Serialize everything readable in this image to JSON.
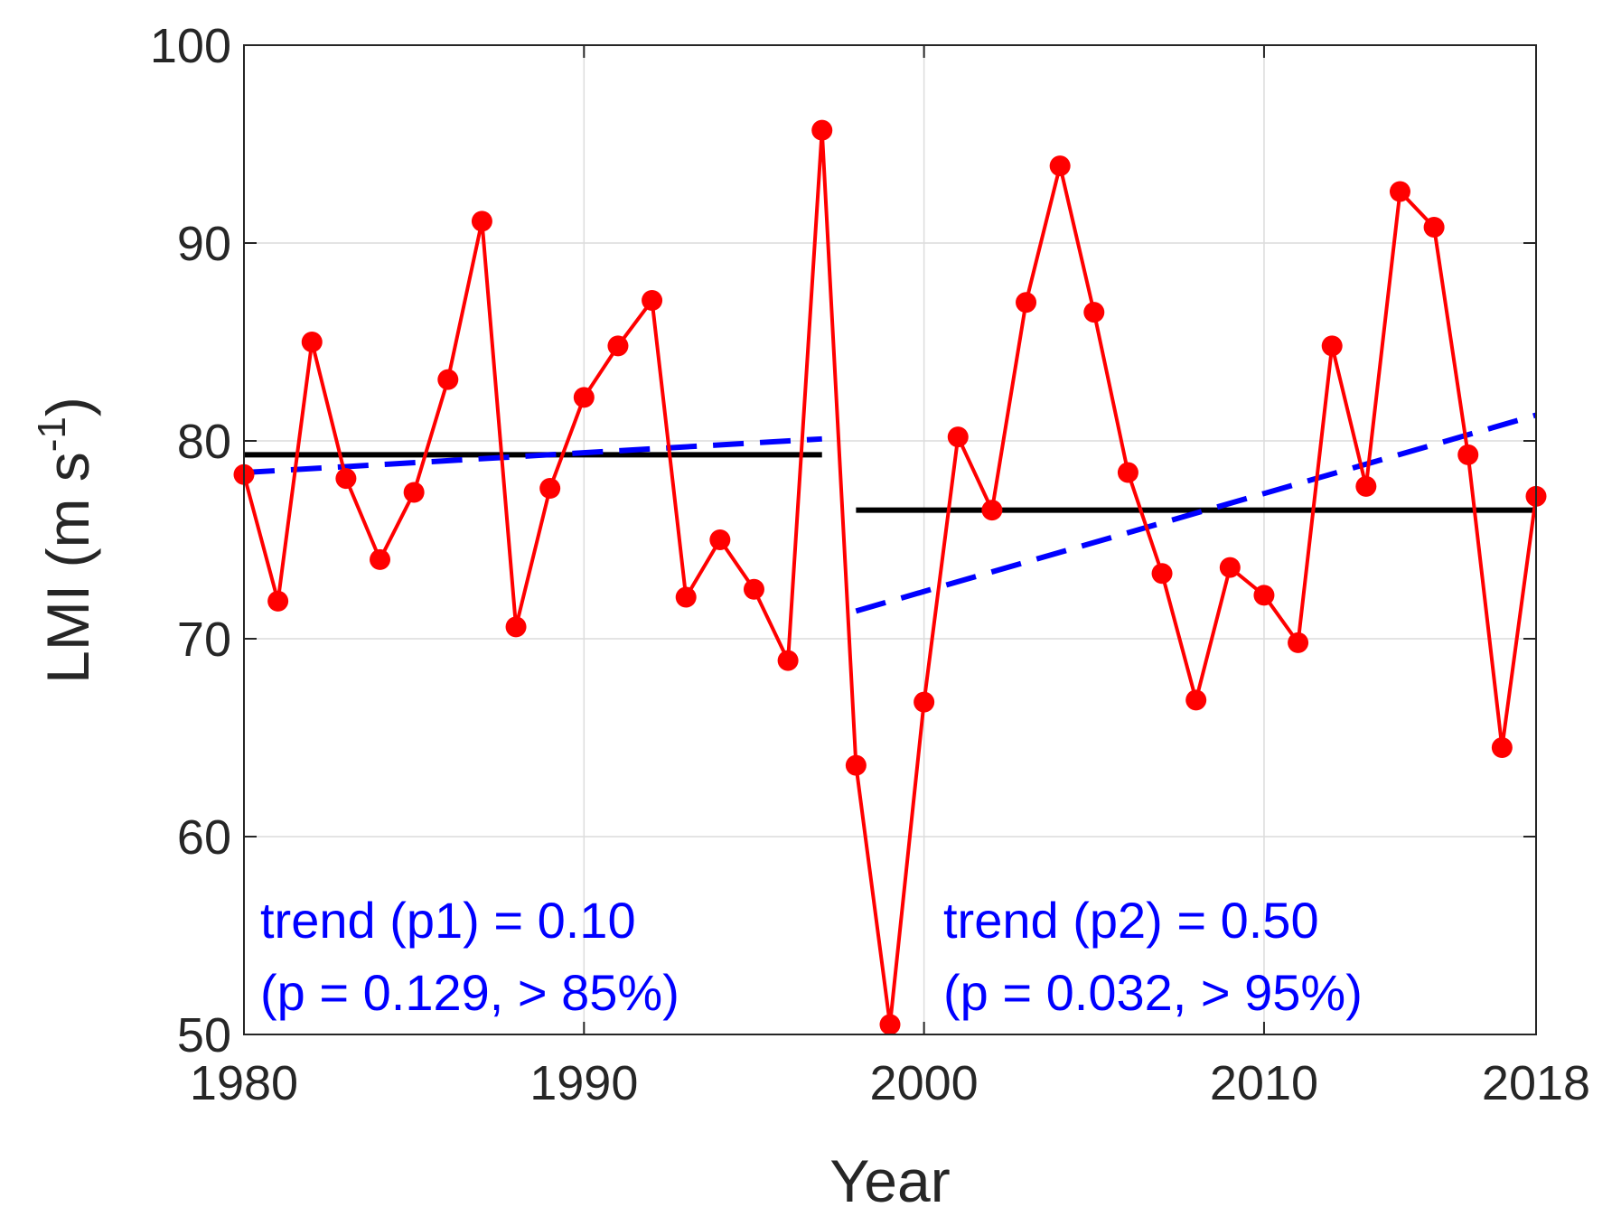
{
  "chart_data": {
    "type": "line",
    "title": "",
    "xlabel": "Year",
    "ylabel": "LMI (m s",
    "ylabel_superscript": "-1",
    "ylabel_close": ")",
    "xlim": [
      1980,
      2018
    ],
    "ylim": [
      50,
      100
    ],
    "xticks": [
      1980,
      1990,
      2000,
      2010,
      2018
    ],
    "yticks": [
      50,
      60,
      70,
      80,
      90,
      100
    ],
    "xtick_labels": [
      "1980",
      "1990",
      "2000",
      "2010",
      "2018"
    ],
    "ytick_labels": [
      "50",
      "60",
      "70",
      "80",
      "90",
      "100"
    ],
    "grid": true,
    "colors": {
      "series": "#ff0000",
      "mean": "#000000",
      "trend": "#0000ff",
      "axis": "#262626",
      "grid": "#dcdcdc"
    },
    "series": [
      {
        "name": "LMI",
        "x": [
          1980,
          1981,
          1982,
          1983,
          1984,
          1985,
          1986,
          1987,
          1988,
          1989,
          1990,
          1991,
          1992,
          1993,
          1994,
          1995,
          1996,
          1997,
          1998,
          1999,
          2000,
          2001,
          2002,
          2003,
          2004,
          2005,
          2006,
          2007,
          2008,
          2009,
          2010,
          2011,
          2012,
          2013,
          2014,
          2015,
          2016,
          2017,
          2018
        ],
        "values": [
          78.3,
          71.9,
          85.0,
          78.1,
          74.0,
          77.4,
          83.1,
          91.1,
          70.6,
          77.6,
          82.2,
          84.8,
          87.1,
          72.1,
          75.0,
          72.5,
          68.9,
          95.7,
          63.6,
          50.5,
          66.8,
          80.2,
          76.5,
          87.0,
          93.9,
          86.5,
          78.4,
          73.3,
          66.9,
          73.6,
          72.2,
          69.8,
          84.8,
          77.7,
          92.6,
          90.8,
          79.3,
          64.5,
          77.2
        ]
      }
    ],
    "mean_lines": [
      {
        "name": "mean-p1",
        "x": [
          1980,
          1997
        ],
        "y": 79.3
      },
      {
        "name": "mean-p2",
        "x": [
          1998,
          2018
        ],
        "y": 76.5
      }
    ],
    "trend_lines": [
      {
        "name": "trend-p1",
        "x": [
          1980,
          1997
        ],
        "y": [
          78.4,
          80.1
        ]
      },
      {
        "name": "trend-p2",
        "x": [
          1998,
          2018
        ],
        "y": [
          71.4,
          81.3
        ]
      }
    ],
    "annotations": {
      "p1_line1": "trend (p1) = 0.10",
      "p1_line2": "(p = 0.129, > 85%)",
      "p2_line1": "trend (p2) = 0.50",
      "p2_line2": "(p = 0.032, > 95%)"
    }
  }
}
